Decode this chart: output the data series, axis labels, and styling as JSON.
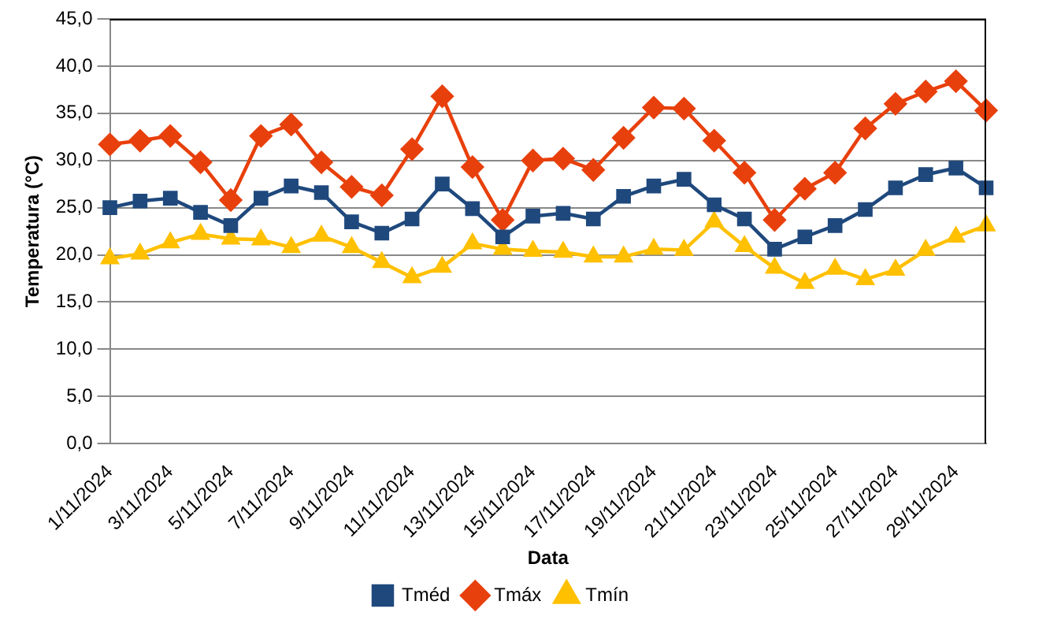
{
  "chart_data": {
    "type": "line",
    "xlabel": "Data",
    "ylabel": "Temperatura (°C)",
    "categories": [
      "1/11/2024",
      null,
      "3/11/2024",
      null,
      "5/11/2024",
      null,
      "7/11/2024",
      null,
      "9/11/2024",
      null,
      "11/11/2024",
      null,
      "13/11/2024",
      null,
      "15/11/2024",
      null,
      "17/11/2024",
      null,
      "19/11/2024",
      null,
      "21/11/2024",
      null,
      "23/11/2024",
      null,
      "25/11/2024",
      null,
      "27/11/2024",
      null,
      "29/11/2024",
      null
    ],
    "series": [
      {
        "name": "Tméd",
        "color": "#1f497d",
        "marker": "square",
        "values": [
          25.0,
          25.7,
          26.0,
          24.5,
          23.1,
          26.0,
          27.3,
          26.6,
          23.5,
          22.3,
          23.8,
          27.5,
          24.9,
          21.9,
          24.1,
          24.4,
          23.8,
          26.2,
          27.3,
          28.0,
          25.3,
          23.8,
          20.6,
          21.9,
          23.1,
          24.8,
          27.1,
          28.5,
          29.2,
          27.1
        ]
      },
      {
        "name": "Tmáx",
        "color": "#e8400c",
        "marker": "diamond",
        "values": [
          31.7,
          32.1,
          32.6,
          29.8,
          25.8,
          32.6,
          33.8,
          29.8,
          27.2,
          26.3,
          31.2,
          36.8,
          29.3,
          23.7,
          30.0,
          30.2,
          29.0,
          32.4,
          35.6,
          35.5,
          32.1,
          28.7,
          23.7,
          27.0,
          28.7,
          33.4,
          36.0,
          37.3,
          38.4,
          35.3
        ]
      },
      {
        "name": "Tmín",
        "color": "#ffc000",
        "marker": "triangle",
        "values": [
          19.6,
          20.1,
          21.3,
          22.2,
          21.7,
          21.6,
          20.8,
          22.0,
          20.8,
          19.2,
          17.6,
          18.7,
          21.2,
          20.6,
          20.4,
          20.3,
          19.8,
          19.8,
          20.6,
          20.5,
          23.5,
          20.9,
          18.6,
          17.0,
          18.5,
          17.4,
          18.4,
          20.5,
          21.9,
          23.1
        ]
      }
    ],
    "ylim": [
      0,
      45
    ],
    "yticks": [
      {
        "value": 0,
        "label": "0,0"
      },
      {
        "value": 5,
        "label": "5,0"
      },
      {
        "value": 10,
        "label": "10,0"
      },
      {
        "value": 15,
        "label": "15,0"
      },
      {
        "value": 20,
        "label": "20,0"
      },
      {
        "value": 25,
        "label": "25,0"
      },
      {
        "value": 30,
        "label": "30,0"
      },
      {
        "value": 35,
        "label": "35,0"
      },
      {
        "value": 40,
        "label": "40,0"
      },
      {
        "value": 45,
        "label": "45,0"
      }
    ],
    "grid": "y",
    "legend": "bottom",
    "line_style": "solid"
  }
}
